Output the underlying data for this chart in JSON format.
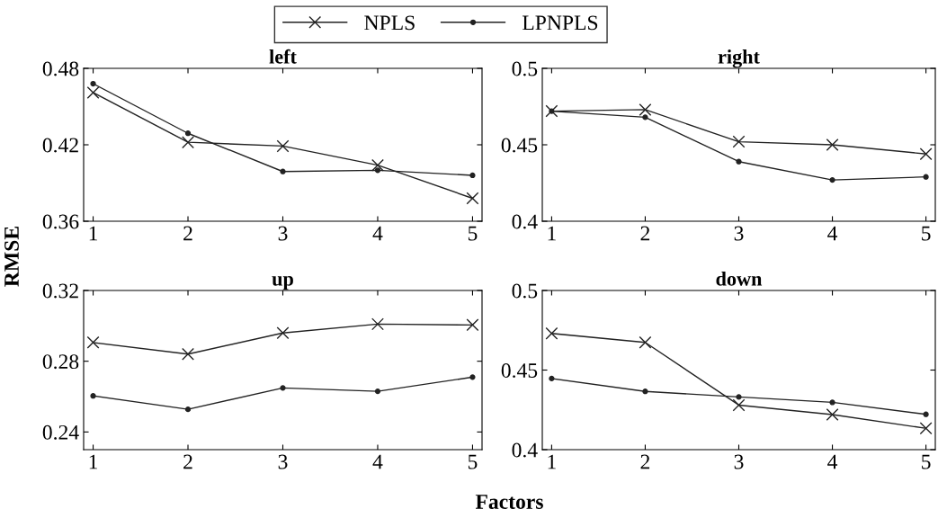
{
  "chart_data": [
    {
      "type": "line",
      "title": "left",
      "ylabel": "RMSE",
      "x": [
        1,
        2,
        3,
        4,
        5
      ],
      "xlim": [
        0.9,
        5.1
      ],
      "xticks": [
        1,
        2,
        3,
        4,
        5
      ],
      "ylim": [
        0.36,
        0.48
      ],
      "yticks": [
        0.36,
        0.42,
        0.48
      ],
      "legend": "top",
      "grid": false,
      "series": [
        {
          "name": "NPLS",
          "color": "#222222",
          "marker": "cross",
          "values": [
            0.461,
            0.422,
            0.419,
            0.404,
            0.378
          ]
        },
        {
          "name": "LPNPLS",
          "color": "#222222",
          "marker": "circle",
          "values": [
            0.468,
            0.429,
            0.399,
            0.4,
            0.396
          ]
        }
      ]
    },
    {
      "type": "line",
      "title": "right",
      "x": [
        1,
        2,
        3,
        4,
        5
      ],
      "xlim": [
        0.9,
        5.1
      ],
      "xticks": [
        1,
        2,
        3,
        4,
        5
      ],
      "ylim": [
        0.4,
        0.5
      ],
      "yticks": [
        0.4,
        0.45,
        0.5
      ],
      "grid": false,
      "series": [
        {
          "color": "#222222",
          "marker": "cross",
          "values": [
            0.472,
            0.473,
            0.452,
            0.45,
            0.444
          ]
        },
        {
          "color": "#222222",
          "marker": "circle",
          "values": [
            0.472,
            0.468,
            0.439,
            0.427,
            0.429
          ]
        }
      ]
    },
    {
      "type": "line",
      "title": "up",
      "x": [
        1,
        2,
        3,
        4,
        5
      ],
      "xlim": [
        0.9,
        5.1
      ],
      "xticks": [
        1,
        2,
        3,
        4,
        5
      ],
      "ylim": [
        0.23,
        0.32
      ],
      "yticks": [
        0.24,
        0.28,
        0.32
      ],
      "grid": false,
      "series": [
        {
          "color": "#222222",
          "marker": "cross",
          "values": [
            0.2906,
            0.284,
            0.296,
            0.301,
            0.3005
          ]
        },
        {
          "color": "#222222",
          "marker": "circle",
          "values": [
            0.2604,
            0.2528,
            0.2649,
            0.263,
            0.271
          ]
        }
      ]
    },
    {
      "type": "line",
      "title": "down",
      "xlabel": "Factors",
      "x": [
        1,
        2,
        3,
        4,
        5
      ],
      "xlim": [
        0.9,
        5.1
      ],
      "xticks": [
        1,
        2,
        3,
        4,
        5
      ],
      "ylim": [
        0.4,
        0.5
      ],
      "yticks": [
        0.4,
        0.45,
        0.5
      ],
      "grid": false,
      "series": [
        {
          "color": "#222222",
          "marker": "cross",
          "values": [
            0.473,
            0.4674,
            0.428,
            0.422,
            0.4134
          ]
        },
        {
          "color": "#222222",
          "marker": "circle",
          "values": [
            0.4447,
            0.4366,
            0.4331,
            0.4297,
            0.4222
          ]
        }
      ]
    }
  ]
}
